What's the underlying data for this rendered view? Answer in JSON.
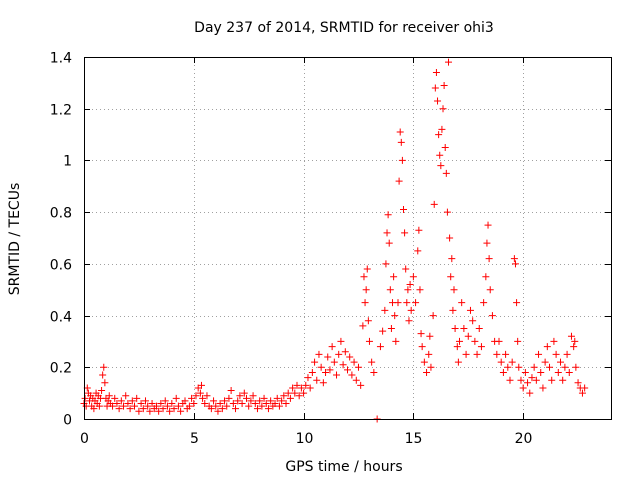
{
  "chart_data": {
    "type": "scatter",
    "title": "Day 237 of 2014, SRMTID for receiver ohi3",
    "xlabel": "GPS time / hours",
    "ylabel": "SRMTID / TECUs",
    "xlim": [
      0,
      24
    ],
    "ylim": [
      0,
      1.4
    ],
    "xticks": [
      0,
      5,
      10,
      15,
      20
    ],
    "yticks": [
      0,
      0.2,
      0.4,
      0.6,
      0.8,
      1,
      1.2,
      1.4
    ],
    "ytick_labels": [
      "0",
      "0.2",
      "0.4",
      "0.6",
      "0.8",
      "1",
      "1.2",
      "1.4"
    ],
    "grid": true,
    "marker": "+",
    "color": "#ff0000",
    "series": [
      {
        "name": "ohi3",
        "points": [
          [
            0.0,
            0.06
          ],
          [
            0.05,
            0.08
          ],
          [
            0.1,
            0.05
          ],
          [
            0.15,
            0.12
          ],
          [
            0.2,
            0.1
          ],
          [
            0.25,
            0.07
          ],
          [
            0.3,
            0.09
          ],
          [
            0.35,
            0.05
          ],
          [
            0.4,
            0.08
          ],
          [
            0.45,
            0.04
          ],
          [
            0.5,
            0.07
          ],
          [
            0.55,
            0.1
          ],
          [
            0.6,
            0.06
          ],
          [
            0.65,
            0.09
          ],
          [
            0.7,
            0.05
          ],
          [
            0.75,
            0.08
          ],
          [
            0.8,
            0.11
          ],
          [
            0.85,
            0.17
          ],
          [
            0.9,
            0.2
          ],
          [
            0.95,
            0.14
          ],
          [
            1.0,
            0.08
          ],
          [
            1.05,
            0.05
          ],
          [
            1.1,
            0.07
          ],
          [
            1.15,
            0.09
          ],
          [
            1.2,
            0.06
          ],
          [
            1.3,
            0.05
          ],
          [
            1.4,
            0.08
          ],
          [
            1.5,
            0.06
          ],
          [
            1.6,
            0.04
          ],
          [
            1.7,
            0.07
          ],
          [
            1.8,
            0.05
          ],
          [
            1.9,
            0.09
          ],
          [
            2.0,
            0.06
          ],
          [
            2.1,
            0.04
          ],
          [
            2.2,
            0.07
          ],
          [
            2.3,
            0.05
          ],
          [
            2.4,
            0.08
          ],
          [
            2.5,
            0.03
          ],
          [
            2.6,
            0.06
          ],
          [
            2.7,
            0.04
          ],
          [
            2.8,
            0.07
          ],
          [
            2.9,
            0.05
          ],
          [
            3.0,
            0.03
          ],
          [
            3.1,
            0.06
          ],
          [
            3.2,
            0.04
          ],
          [
            3.3,
            0.05
          ],
          [
            3.4,
            0.03
          ],
          [
            3.5,
            0.06
          ],
          [
            3.6,
            0.04
          ],
          [
            3.7,
            0.07
          ],
          [
            3.8,
            0.05
          ],
          [
            3.9,
            0.03
          ],
          [
            4.0,
            0.06
          ],
          [
            4.1,
            0.04
          ],
          [
            4.2,
            0.08
          ],
          [
            4.3,
            0.05
          ],
          [
            4.4,
            0.03
          ],
          [
            4.5,
            0.06
          ],
          [
            4.6,
            0.07
          ],
          [
            4.7,
            0.04
          ],
          [
            4.8,
            0.05
          ],
          [
            4.9,
            0.08
          ],
          [
            5.0,
            0.06
          ],
          [
            5.1,
            0.09
          ],
          [
            5.2,
            0.12
          ],
          [
            5.3,
            0.1
          ],
          [
            5.35,
            0.13
          ],
          [
            5.4,
            0.08
          ],
          [
            5.5,
            0.06
          ],
          [
            5.6,
            0.09
          ],
          [
            5.7,
            0.05
          ],
          [
            5.8,
            0.04
          ],
          [
            5.9,
            0.07
          ],
          [
            6.0,
            0.05
          ],
          [
            6.1,
            0.03
          ],
          [
            6.2,
            0.06
          ],
          [
            6.3,
            0.04
          ],
          [
            6.4,
            0.07
          ],
          [
            6.5,
            0.05
          ],
          [
            6.6,
            0.08
          ],
          [
            6.7,
            0.11
          ],
          [
            6.8,
            0.06
          ],
          [
            6.9,
            0.04
          ],
          [
            7.0,
            0.07
          ],
          [
            7.1,
            0.09
          ],
          [
            7.2,
            0.06
          ],
          [
            7.3,
            0.1
          ],
          [
            7.4,
            0.08
          ],
          [
            7.5,
            0.05
          ],
          [
            7.6,
            0.07
          ],
          [
            7.7,
            0.09
          ],
          [
            7.8,
            0.06
          ],
          [
            7.9,
            0.04
          ],
          [
            8.0,
            0.07
          ],
          [
            8.1,
            0.05
          ],
          [
            8.2,
            0.08
          ],
          [
            8.3,
            0.06
          ],
          [
            8.4,
            0.04
          ],
          [
            8.5,
            0.07
          ],
          [
            8.6,
            0.05
          ],
          [
            8.7,
            0.06
          ],
          [
            8.8,
            0.08
          ],
          [
            8.9,
            0.05
          ],
          [
            9.0,
            0.07
          ],
          [
            9.1,
            0.09
          ],
          [
            9.2,
            0.06
          ],
          [
            9.3,
            0.1
          ],
          [
            9.4,
            0.08
          ],
          [
            9.5,
            0.12
          ],
          [
            9.6,
            0.1
          ],
          [
            9.7,
            0.13
          ],
          [
            9.8,
            0.09
          ],
          [
            9.9,
            0.12
          ],
          [
            10.0,
            0.1
          ],
          [
            10.1,
            0.13
          ],
          [
            10.2,
            0.16
          ],
          [
            10.3,
            0.12
          ],
          [
            10.4,
            0.18
          ],
          [
            10.5,
            0.22
          ],
          [
            10.6,
            0.15
          ],
          [
            10.7,
            0.25
          ],
          [
            10.8,
            0.2
          ],
          [
            10.9,
            0.14
          ],
          [
            11.0,
            0.18
          ],
          [
            11.1,
            0.24
          ],
          [
            11.2,
            0.19
          ],
          [
            11.3,
            0.28
          ],
          [
            11.4,
            0.22
          ],
          [
            11.5,
            0.17
          ],
          [
            11.6,
            0.25
          ],
          [
            11.7,
            0.3
          ],
          [
            11.8,
            0.21
          ],
          [
            11.9,
            0.26
          ],
          [
            12.0,
            0.19
          ],
          [
            12.1,
            0.24
          ],
          [
            12.2,
            0.17
          ],
          [
            12.3,
            0.22
          ],
          [
            12.4,
            0.15
          ],
          [
            12.5,
            0.2
          ],
          [
            12.6,
            0.13
          ],
          [
            12.7,
            0.36
          ],
          [
            12.75,
            0.55
          ],
          [
            12.8,
            0.45
          ],
          [
            12.85,
            0.5
          ],
          [
            12.9,
            0.58
          ],
          [
            12.95,
            0.38
          ],
          [
            13.0,
            0.3
          ],
          [
            13.1,
            0.22
          ],
          [
            13.2,
            0.18
          ],
          [
            13.35,
            0.0
          ],
          [
            13.5,
            0.28
          ],
          [
            13.6,
            0.34
          ],
          [
            13.7,
            0.42
          ],
          [
            13.75,
            0.6
          ],
          [
            13.8,
            0.72
          ],
          [
            13.85,
            0.79
          ],
          [
            13.9,
            0.68
          ],
          [
            13.95,
            0.5
          ],
          [
            14.0,
            0.35
          ],
          [
            14.05,
            0.45
          ],
          [
            14.1,
            0.55
          ],
          [
            14.15,
            0.4
          ],
          [
            14.2,
            0.3
          ],
          [
            14.3,
            0.45
          ],
          [
            14.35,
            0.92
          ],
          [
            14.4,
            1.11
          ],
          [
            14.45,
            1.07
          ],
          [
            14.5,
            1.0
          ],
          [
            14.55,
            0.81
          ],
          [
            14.6,
            0.72
          ],
          [
            14.65,
            0.58
          ],
          [
            14.7,
            0.45
          ],
          [
            14.75,
            0.5
          ],
          [
            14.8,
            0.38
          ],
          [
            14.85,
            0.52
          ],
          [
            14.9,
            0.42
          ],
          [
            15.0,
            0.55
          ],
          [
            15.1,
            0.45
          ],
          [
            15.2,
            0.65
          ],
          [
            15.25,
            0.73
          ],
          [
            15.3,
            0.5
          ],
          [
            15.35,
            0.33
          ],
          [
            15.4,
            0.28
          ],
          [
            15.5,
            0.22
          ],
          [
            15.6,
            0.18
          ],
          [
            15.7,
            0.25
          ],
          [
            15.75,
            0.32
          ],
          [
            15.8,
            0.2
          ],
          [
            15.9,
            0.4
          ],
          [
            15.95,
            0.83
          ],
          [
            16.0,
            1.28
          ],
          [
            16.05,
            1.34
          ],
          [
            16.1,
            1.23
          ],
          [
            16.15,
            1.1
          ],
          [
            16.2,
            1.02
          ],
          [
            16.25,
            0.98
          ],
          [
            16.3,
            1.12
          ],
          [
            16.35,
            1.2
          ],
          [
            16.4,
            1.29
          ],
          [
            16.45,
            1.05
          ],
          [
            16.5,
            0.95
          ],
          [
            16.55,
            0.8
          ],
          [
            16.6,
            1.38
          ],
          [
            16.65,
            0.7
          ],
          [
            16.7,
            0.55
          ],
          [
            16.75,
            0.62
          ],
          [
            16.8,
            0.42
          ],
          [
            16.85,
            0.5
          ],
          [
            16.9,
            0.35
          ],
          [
            17.0,
            0.28
          ],
          [
            17.05,
            0.22
          ],
          [
            17.1,
            0.3
          ],
          [
            17.2,
            0.45
          ],
          [
            17.3,
            0.35
          ],
          [
            17.4,
            0.25
          ],
          [
            17.5,
            0.32
          ],
          [
            17.6,
            0.42
          ],
          [
            17.7,
            0.38
          ],
          [
            17.8,
            0.3
          ],
          [
            17.9,
            0.25
          ],
          [
            18.0,
            0.35
          ],
          [
            18.1,
            0.28
          ],
          [
            18.2,
            0.45
          ],
          [
            18.3,
            0.55
          ],
          [
            18.35,
            0.68
          ],
          [
            18.4,
            0.75
          ],
          [
            18.45,
            0.62
          ],
          [
            18.5,
            0.5
          ],
          [
            18.6,
            0.4
          ],
          [
            18.7,
            0.3
          ],
          [
            18.8,
            0.25
          ],
          [
            18.9,
            0.3
          ],
          [
            19.0,
            0.22
          ],
          [
            19.1,
            0.18
          ],
          [
            19.2,
            0.25
          ],
          [
            19.3,
            0.2
          ],
          [
            19.4,
            0.15
          ],
          [
            19.5,
            0.22
          ],
          [
            19.6,
            0.62
          ],
          [
            19.65,
            0.6
          ],
          [
            19.7,
            0.45
          ],
          [
            19.75,
            0.3
          ],
          [
            19.8,
            0.2
          ],
          [
            19.9,
            0.15
          ],
          [
            20.0,
            0.12
          ],
          [
            20.1,
            0.18
          ],
          [
            20.2,
            0.14
          ],
          [
            20.3,
            0.1
          ],
          [
            20.4,
            0.16
          ],
          [
            20.5,
            0.2
          ],
          [
            20.6,
            0.15
          ],
          [
            20.7,
            0.25
          ],
          [
            20.8,
            0.18
          ],
          [
            20.9,
            0.12
          ],
          [
            21.0,
            0.22
          ],
          [
            21.1,
            0.28
          ],
          [
            21.2,
            0.2
          ],
          [
            21.3,
            0.15
          ],
          [
            21.4,
            0.3
          ],
          [
            21.5,
            0.25
          ],
          [
            21.6,
            0.18
          ],
          [
            21.7,
            0.22
          ],
          [
            21.8,
            0.15
          ],
          [
            21.9,
            0.2
          ],
          [
            22.0,
            0.25
          ],
          [
            22.1,
            0.18
          ],
          [
            22.2,
            0.32
          ],
          [
            22.3,
            0.28
          ],
          [
            22.35,
            0.3
          ],
          [
            22.4,
            0.2
          ],
          [
            22.5,
            0.14
          ],
          [
            22.6,
            0.12
          ],
          [
            22.7,
            0.1
          ],
          [
            22.8,
            0.12
          ]
        ]
      }
    ]
  }
}
